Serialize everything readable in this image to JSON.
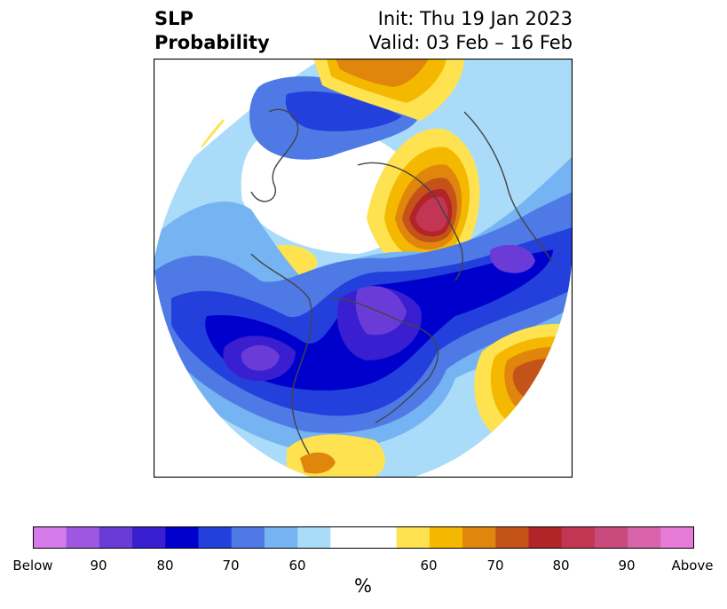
{
  "title": {
    "variable": "SLP",
    "product": "Probability",
    "init": "Init: Thu 19 Jan 2023",
    "valid": "Valid: 03 Feb – 16 Feb"
  },
  "colorbar": {
    "colors": [
      "#d57ae9",
      "#9d57e0",
      "#6a3bd6",
      "#3a1fd1",
      "#0000cc",
      "#2340dd",
      "#4f7ae5",
      "#75b3f2",
      "#aadcf9",
      "#ffffff",
      "#ffffff",
      "#fee24f",
      "#f4b800",
      "#e0860c",
      "#c4531a",
      "#b12428",
      "#c23553",
      "#c94a7c",
      "#d964ab",
      "#e67bd8"
    ],
    "tick_labels": [
      "Below",
      "90",
      "80",
      "70",
      "60",
      "60",
      "70",
      "80",
      "90",
      "Above"
    ],
    "units": "%"
  }
}
